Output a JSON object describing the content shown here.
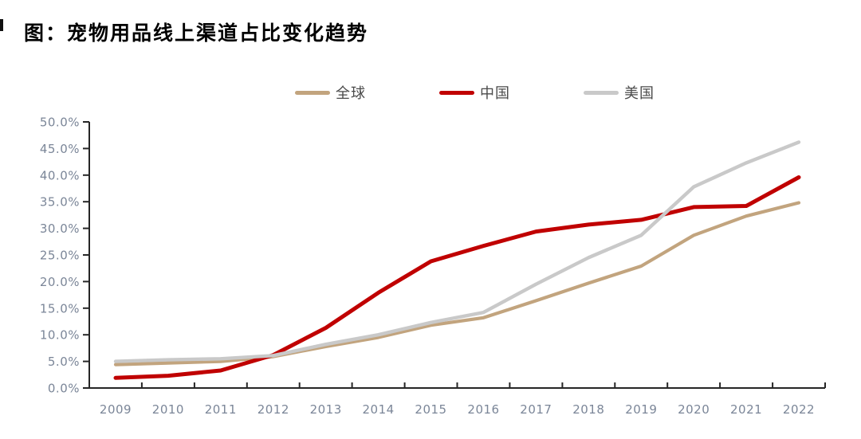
{
  "title": "图：宠物用品线上渠道占比变化趋势",
  "palette": {
    "axis": "#262626",
    "tick_label": "#7B8698",
    "legend_text": "#4A4A4A",
    "title_text": "#000000",
    "background": "#FFFFFF"
  },
  "chart_data": {
    "type": "line",
    "title": "图：宠物用品线上渠道占比变化趋势",
    "categories": [
      "2009",
      "2010",
      "2011",
      "2012",
      "2013",
      "2014",
      "2015",
      "2016",
      "2017",
      "2018",
      "2019",
      "2020",
      "2021",
      "2022"
    ],
    "series": [
      {
        "name": "全球",
        "color": "#C2A47E",
        "values": [
          4.4,
          4.7,
          5.0,
          5.9,
          7.8,
          9.5,
          11.8,
          13.2,
          16.4,
          19.7,
          22.9,
          28.7,
          32.3,
          34.8
        ]
      },
      {
        "name": "中国",
        "color": "#C00000",
        "values": [
          1.9,
          2.3,
          3.3,
          6.2,
          11.3,
          17.9,
          23.8,
          26.7,
          29.4,
          30.7,
          31.6,
          34.0,
          34.2,
          39.6
        ]
      },
      {
        "name": "美国",
        "color": "#C9C9C9",
        "values": [
          5.0,
          5.3,
          5.5,
          6.1,
          8.2,
          10.0,
          12.3,
          14.2,
          19.5,
          24.5,
          28.7,
          37.8,
          42.3,
          46.2
        ]
      }
    ],
    "xlabel": "",
    "ylabel": "",
    "ylim": [
      0,
      50
    ],
    "ytick_step": 5,
    "y_tick_labels": [
      "0.0%",
      "5.0%",
      "10.0%",
      "15.0%",
      "20.0%",
      "25.0%",
      "30.0%",
      "35.0%",
      "40.0%",
      "45.0%",
      "50.0%"
    ],
    "unit": "percent",
    "grid": false,
    "legend_position": "top-center"
  }
}
